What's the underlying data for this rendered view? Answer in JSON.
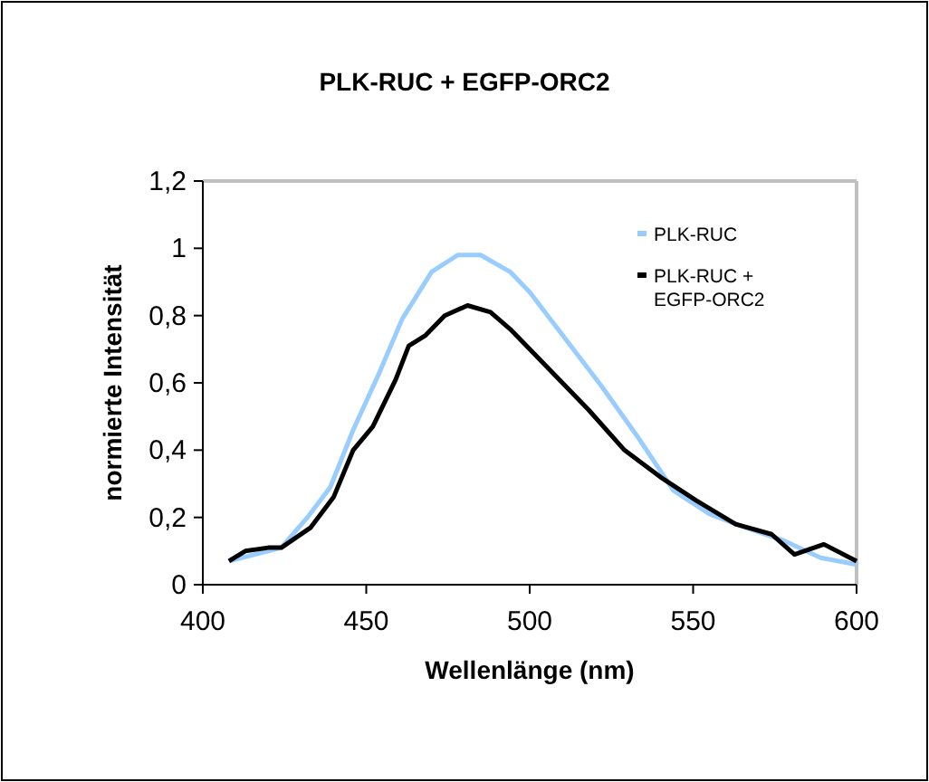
{
  "chart_data": {
    "type": "line",
    "title": "PLK-RUC + EGFP-ORC2",
    "xlabel": "Wellenlänge (nm)",
    "ylabel": "normierte Intensität",
    "xlim": [
      400,
      600
    ],
    "xticks": [
      400,
      450,
      500,
      550,
      600
    ],
    "ylim": [
      0,
      1.2
    ],
    "yticks": [
      0,
      {
        "value": 0.2,
        "label": "0,2"
      },
      {
        "value": 0.4,
        "label": "0,4"
      },
      {
        "value": 0.6,
        "label": "0,6"
      },
      {
        "value": 0.8,
        "label": "0,8"
      },
      1,
      {
        "value": 1.2,
        "label": "1,2"
      }
    ],
    "legend": "top right",
    "grid": false,
    "marker": "none",
    "line_style": "solid",
    "series": [
      {
        "name": "PLK-RUC",
        "color": "#99ccff",
        "x": [
          408,
          424,
          432,
          439,
          446,
          454,
          461,
          470,
          478,
          485,
          494,
          500,
          511,
          522,
          533,
          544,
          555,
          566,
          578,
          589,
          600
        ],
        "values": [
          0.07,
          0.11,
          0.2,
          0.29,
          0.46,
          0.63,
          0.79,
          0.93,
          0.98,
          0.98,
          0.93,
          0.87,
          0.73,
          0.59,
          0.44,
          0.28,
          0.21,
          0.17,
          0.13,
          0.08,
          0.06
        ]
      },
      {
        "name": "PLK-RUC + EGFP-ORC2",
        "color": "#000000",
        "x": [
          408,
          413,
          420,
          424,
          433,
          440,
          446,
          452,
          459,
          463,
          468,
          474,
          481,
          488,
          494,
          500,
          509,
          518,
          529,
          540,
          551,
          563,
          574,
          581,
          590,
          600
        ],
        "values": [
          0.07,
          0.1,
          0.11,
          0.11,
          0.17,
          0.26,
          0.4,
          0.47,
          0.61,
          0.71,
          0.74,
          0.8,
          0.83,
          0.81,
          0.76,
          0.7,
          0.61,
          0.52,
          0.4,
          0.32,
          0.25,
          0.18,
          0.15,
          0.09,
          0.12,
          0.07
        ]
      }
    ]
  }
}
